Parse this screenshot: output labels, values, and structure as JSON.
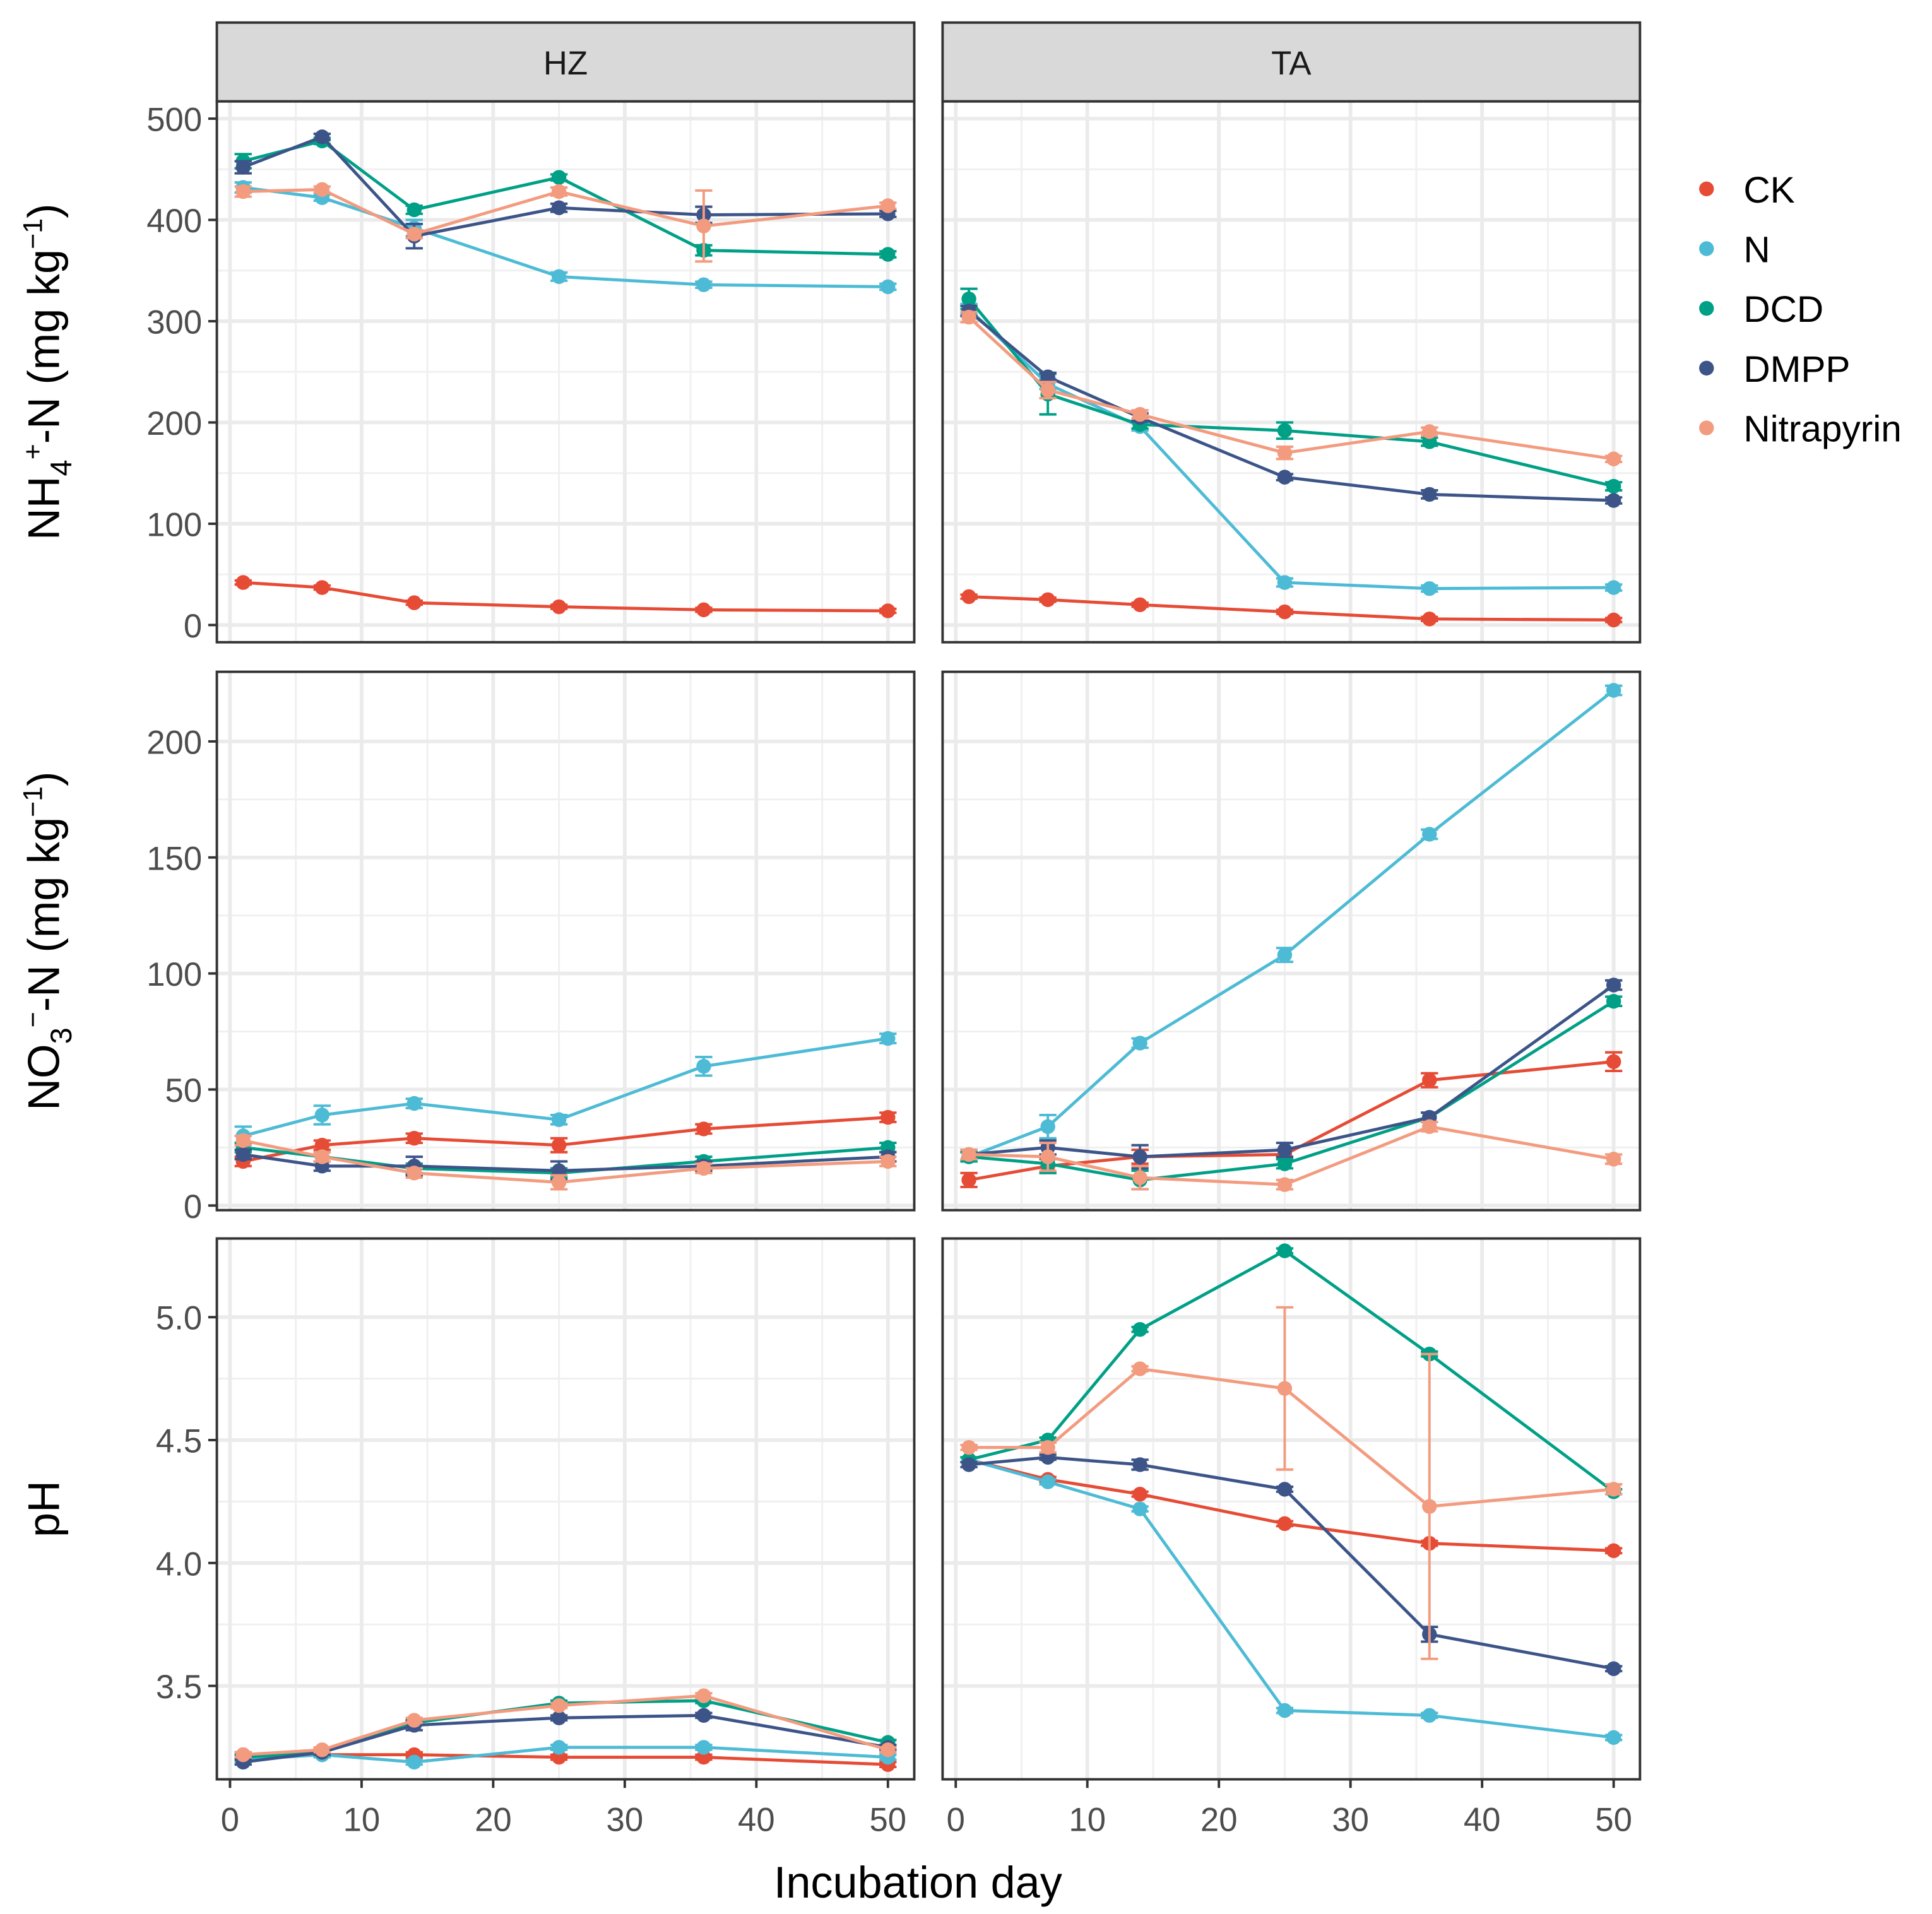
{
  "chart_data": {
    "type": "line",
    "xlabel": "Incubation day",
    "x": [
      1,
      7,
      14,
      25,
      36,
      50
    ],
    "x_ticks": [
      "0",
      "10",
      "20",
      "30",
      "40",
      "50"
    ],
    "x_tick_values": [
      0,
      10,
      20,
      30,
      40,
      50
    ],
    "xlim": [
      -1,
      52
    ],
    "facets": [
      "HZ",
      "TA"
    ],
    "legend": {
      "placement": "right",
      "entries": [
        "CK",
        "N",
        "DCD",
        "DMPP",
        "Nitrapyrin"
      ]
    },
    "colors": {
      "CK": "#e64b35",
      "N": "#4dbbd5",
      "DCD": "#00a087",
      "DMPP": "#3c5488",
      "Nitrapyrin": "#f39b7f"
    },
    "grid": true,
    "rows": [
      {
        "ylabel_main": "NH",
        "ylabel_sub": "4",
        "ylabel_sup": "+",
        "ylabel_rest": "-N (mg kg",
        "ylabel_sup2": "−1",
        "ylabel_end": ")",
        "ylim": [
          -17,
          517
        ],
        "y_ticks": [
          "0",
          "100",
          "200",
          "300",
          "400",
          "500"
        ],
        "y_tick_values": [
          0,
          100,
          200,
          300,
          400,
          500
        ],
        "panels": [
          {
            "facet": "HZ",
            "series": [
              {
                "name": "CK",
                "values": [
                  42,
                  37,
                  22,
                  18,
                  15,
                  14
                ],
                "errors": [
                  2,
                  2,
                  2,
                  2,
                  2,
                  2
                ]
              },
              {
                "name": "N",
                "values": [
                  432,
                  422,
                  392,
                  344,
                  336,
                  334
                ],
                "errors": [
                  5,
                  3,
                  8,
                  4,
                  3,
                  3
                ]
              },
              {
                "name": "DCD",
                "values": [
                  458,
                  478,
                  410,
                  442,
                  370,
                  366
                ],
                "errors": [
                  7,
                  3,
                  4,
                  3,
                  5,
                  3
                ]
              },
              {
                "name": "DMPP",
                "values": [
                  452,
                  482,
                  384,
                  412,
                  405,
                  406
                ],
                "errors": [
                  6,
                  3,
                  12,
                  4,
                  8,
                  3
                ]
              },
              {
                "name": "Nitrapyrin",
                "values": [
                  428,
                  430,
                  386,
                  428,
                  394,
                  414
                ],
                "errors": [
                  5,
                  3,
                  4,
                  4,
                  35,
                  3
                ]
              }
            ]
          },
          {
            "facet": "TA",
            "series": [
              {
                "name": "CK",
                "values": [
                  28,
                  25,
                  20,
                  13,
                  6,
                  5
                ],
                "errors": [
                  2,
                  2,
                  2,
                  2,
                  2,
                  2
                ]
              },
              {
                "name": "N",
                "values": [
                  312,
                  238,
                  196,
                  42,
                  36,
                  37
                ],
                "errors": [
                  5,
                  5,
                  4,
                  4,
                  3,
                  3
                ]
              },
              {
                "name": "DCD",
                "values": [
                  322,
                  228,
                  198,
                  192,
                  181,
                  137
                ],
                "errors": [
                  10,
                  20,
                  4,
                  8,
                  4,
                  4
                ]
              },
              {
                "name": "DMPP",
                "values": [
                  310,
                  245,
                  205,
                  146,
                  129,
                  123
                ],
                "errors": [
                  5,
                  4,
                  4,
                  3,
                  4,
                  3
                ]
              },
              {
                "name": "Nitrapyrin",
                "values": [
                  304,
                  232,
                  208,
                  170,
                  191,
                  164
                ],
                "errors": [
                  5,
                  8,
                  4,
                  6,
                  4,
                  3
                ]
              }
            ]
          }
        ]
      },
      {
        "ylabel_main": "NO",
        "ylabel_sub": "3",
        "ylabel_sup": "−",
        "ylabel_rest": "-N (mg kg",
        "ylabel_sup2": "−1",
        "ylabel_end": ")",
        "ylim": [
          -2,
          230
        ],
        "y_ticks": [
          "0",
          "50",
          "100",
          "150",
          "200"
        ],
        "y_tick_values": [
          0,
          50,
          100,
          150,
          200
        ],
        "panels": [
          {
            "facet": "HZ",
            "series": [
              {
                "name": "CK",
                "values": [
                  19,
                  26,
                  29,
                  26,
                  33,
                  38
                ],
                "errors": [
                  2,
                  2,
                  2,
                  3,
                  2,
                  2
                ]
              },
              {
                "name": "N",
                "values": [
                  30,
                  39,
                  44,
                  37,
                  60,
                  72
                ],
                "errors": [
                  4,
                  4,
                  2,
                  2,
                  4,
                  2
                ]
              },
              {
                "name": "DCD",
                "values": [
                  25,
                  21,
                  16,
                  14,
                  19,
                  25
                ],
                "errors": [
                  2,
                  2,
                  2,
                  2,
                  2,
                  2
                ]
              },
              {
                "name": "DMPP",
                "values": [
                  22,
                  17,
                  17,
                  15,
                  17,
                  21
                ],
                "errors": [
                  2,
                  2,
                  4,
                  4,
                  2,
                  2
                ]
              },
              {
                "name": "Nitrapyrin",
                "values": [
                  28,
                  21,
                  14,
                  10,
                  16,
                  19
                ],
                "errors": [
                  2,
                  2,
                  2,
                  3,
                  2,
                  2
                ]
              }
            ]
          },
          {
            "facet": "TA",
            "series": [
              {
                "name": "CK",
                "values": [
                  11,
                  17,
                  21,
                  22,
                  54,
                  62
                ],
                "errors": [
                  3,
                  3,
                  3,
                  2,
                  3,
                  4
                ]
              },
              {
                "name": "N",
                "values": [
                  21,
                  34,
                  70,
                  108,
                  160,
                  222
                ],
                "errors": [
                  2,
                  5,
                  2,
                  3,
                  2,
                  2
                ]
              },
              {
                "name": "DCD",
                "values": [
                  21,
                  18,
                  11,
                  18,
                  38,
                  88
                ],
                "errors": [
                  2,
                  4,
                  4,
                  2,
                  2,
                  2
                ]
              },
              {
                "name": "DMPP",
                "values": [
                  22,
                  25,
                  21,
                  24,
                  38,
                  95
                ],
                "errors": [
                  2,
                  3,
                  5,
                  3,
                  2,
                  2
                ]
              },
              {
                "name": "Nitrapyrin",
                "values": [
                  22,
                  21,
                  12,
                  9,
                  34,
                  20
                ],
                "errors": [
                  2,
                  6,
                  5,
                  2,
                  2,
                  2
                ]
              }
            ]
          }
        ]
      },
      {
        "ylabel_main": "pH",
        "ylabel_sub": "",
        "ylabel_sup": "",
        "ylabel_rest": "",
        "ylabel_sup2": "",
        "ylabel_end": "",
        "ylim": [
          3.12,
          5.32
        ],
        "y_ticks": [
          "3.5",
          "4.0",
          "4.5",
          "5.0"
        ],
        "y_tick_values": [
          3.5,
          4.0,
          4.5,
          5.0
        ],
        "panels": [
          {
            "facet": "HZ",
            "series": [
              {
                "name": "CK",
                "values": [
                  3.22,
                  3.22,
                  3.22,
                  3.21,
                  3.21,
                  3.18
                ],
                "errors": [
                  0.01,
                  0.01,
                  0.01,
                  0.01,
                  0.01,
                  0.01
                ]
              },
              {
                "name": "N",
                "values": [
                  3.2,
                  3.22,
                  3.19,
                  3.25,
                  3.25,
                  3.21
                ],
                "errors": [
                  0.01,
                  0.01,
                  0.01,
                  0.01,
                  0.01,
                  0.01
                ]
              },
              {
                "name": "DCD",
                "values": [
                  3.21,
                  3.23,
                  3.35,
                  3.43,
                  3.44,
                  3.27
                ],
                "errors": [
                  0.01,
                  0.01,
                  0.01,
                  0.01,
                  0.01,
                  0.01
                ]
              },
              {
                "name": "DMPP",
                "values": [
                  3.19,
                  3.23,
                  3.34,
                  3.37,
                  3.38,
                  3.25
                ],
                "errors": [
                  0.01,
                  0.01,
                  0.02,
                  0.01,
                  0.01,
                  0.01
                ]
              },
              {
                "name": "Nitrapyrin",
                "values": [
                  3.22,
                  3.24,
                  3.36,
                  3.42,
                  3.46,
                  3.24
                ],
                "errors": [
                  0.01,
                  0.01,
                  0.01,
                  0.01,
                  0.01,
                  0.01
                ]
              }
            ]
          },
          {
            "facet": "TA",
            "series": [
              {
                "name": "CK",
                "values": [
                  4.42,
                  4.34,
                  4.28,
                  4.16,
                  4.08,
                  4.05
                ],
                "errors": [
                  0.01,
                  0.01,
                  0.01,
                  0.01,
                  0.01,
                  0.01
                ]
              },
              {
                "name": "N",
                "values": [
                  4.42,
                  4.33,
                  4.22,
                  3.4,
                  3.38,
                  3.29
                ],
                "errors": [
                  0.01,
                  0.01,
                  0.01,
                  0.01,
                  0.01,
                  0.01
                ]
              },
              {
                "name": "DCD",
                "values": [
                  4.42,
                  4.5,
                  4.95,
                  5.27,
                  4.85,
                  4.29
                ],
                "errors": [
                  0.01,
                  0.01,
                  0.01,
                  0.01,
                  0.01,
                  0.01
                ]
              },
              {
                "name": "DMPP",
                "values": [
                  4.4,
                  4.43,
                  4.4,
                  4.3,
                  3.71,
                  3.57
                ],
                "errors": [
                  0.01,
                  0.01,
                  0.02,
                  0.01,
                  0.03,
                  0.01
                ]
              },
              {
                "name": "Nitrapyrin",
                "values": [
                  4.47,
                  4.47,
                  4.79,
                  4.71,
                  4.23,
                  4.3
                ],
                "errors": [
                  0.01,
                  0.02,
                  0.01,
                  0.33,
                  0.62,
                  0.02
                ]
              }
            ]
          }
        ]
      }
    ]
  }
}
